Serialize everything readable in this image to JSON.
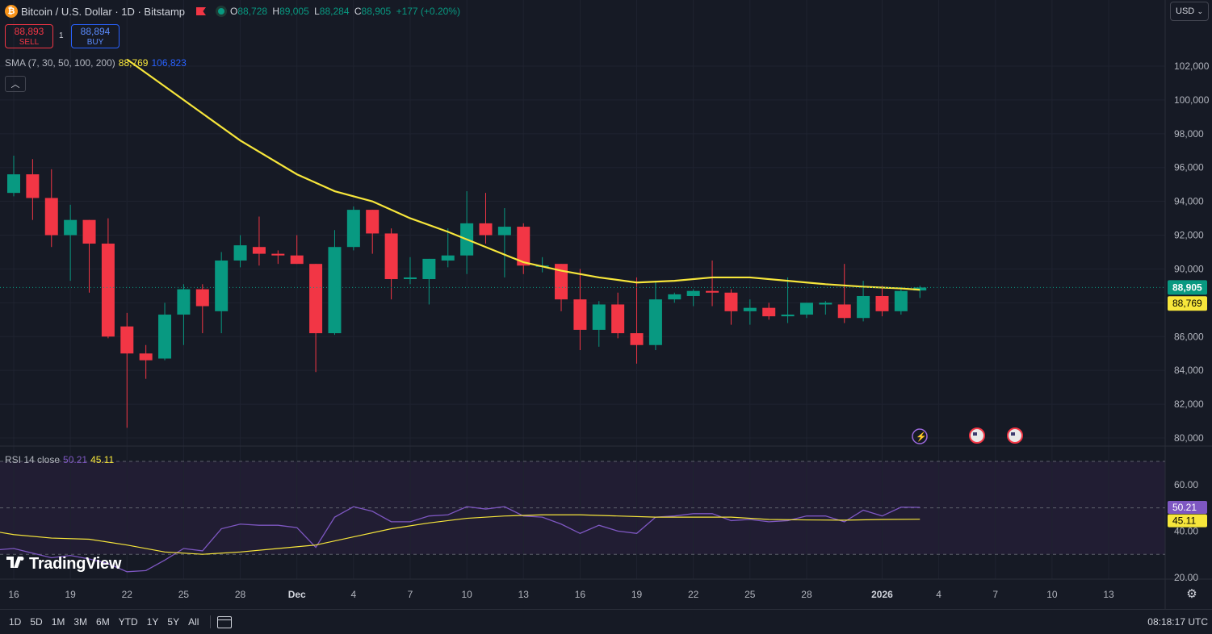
{
  "header": {
    "symbol_title": "Bitcoin / U.S. Dollar · 1D · Bitstamp",
    "ohlc": [
      {
        "k": "O",
        "v": "88,728"
      },
      {
        "k": "H",
        "v": "89,005"
      },
      {
        "k": "L",
        "v": "88,284"
      },
      {
        "k": "C",
        "v": "88,905"
      }
    ],
    "change": "+177 (+0.20%)"
  },
  "trade": {
    "sell_price": "88,893",
    "sell_label": "SELL",
    "spread": "1",
    "buy_price": "88,894",
    "buy_label": "BUY"
  },
  "sma_legend": {
    "label": "SMA (7, 30, 50, 100, 200)",
    "value1": "88,769",
    "value2": "106,823"
  },
  "rsi_legend": {
    "label": "RSI 14 close",
    "value1": "50.21",
    "value2": "45.11"
  },
  "currency": "USD",
  "logo_text": "TradingView",
  "bottom_bar": {
    "ranges": [
      "1D",
      "5D",
      "1M",
      "3M",
      "6M",
      "YTD",
      "1Y",
      "5Y",
      "All"
    ],
    "time": "08:18:17 UTC"
  },
  "colors": {
    "up": "#089981",
    "down": "#f23645",
    "sma": "#f7e63b",
    "rsi": "#7e57c2",
    "rsi_ma": "#f7e63b",
    "background": "#161a25"
  },
  "icons": [
    "bitcoin-icon",
    "flag-icon",
    "market-status-icon",
    "collapse-icon",
    "calendar-icon",
    "gear-icon",
    "tradingview-logo-icon",
    "event-lightning-icon",
    "us-flag-icon"
  ],
  "chart_data": [
    {
      "type": "candlestick",
      "title": "Bitcoin / U.S. Dollar · 1D · Bitstamp",
      "y_ticks": [
        80000,
        82000,
        84000,
        86000,
        88000,
        90000,
        92000,
        94000,
        96000,
        98000,
        100000,
        102000
      ],
      "y_tick_labels": [
        "80,000",
        "82,000",
        "84,000",
        "86,000",
        "88,000",
        "90,000",
        "92,000",
        "94,000",
        "96,000",
        "98,000",
        "100,000",
        "102,000"
      ],
      "x_ticks": [
        "16",
        "19",
        "22",
        "25",
        "28",
        "Dec",
        "4",
        "7",
        "10",
        "13",
        "16",
        "19",
        "22",
        "25",
        "28",
        "2026",
        "4",
        "7",
        "10",
        "13"
      ],
      "x_tick_index": [
        0,
        3,
        6,
        9,
        12,
        15,
        18,
        21,
        24,
        27,
        30,
        33,
        36,
        39,
        42,
        46,
        49,
        52,
        55,
        58
      ],
      "candles": [
        {
          "o": 94500,
          "h": 96700,
          "l": 94300,
          "c": 95600
        },
        {
          "o": 95600,
          "h": 96500,
          "l": 92900,
          "c": 94200
        },
        {
          "o": 94200,
          "h": 95900,
          "l": 91300,
          "c": 92000
        },
        {
          "o": 92000,
          "h": 93800,
          "l": 89300,
          "c": 92900
        },
        {
          "o": 92900,
          "h": 92900,
          "l": 88600,
          "c": 91500
        },
        {
          "o": 91500,
          "h": 93000,
          "l": 85900,
          "c": 86000
        },
        {
          "o": 86600,
          "h": 87400,
          "l": 80600,
          "c": 85000
        },
        {
          "o": 85000,
          "h": 85500,
          "l": 83500,
          "c": 84600
        },
        {
          "o": 84700,
          "h": 88000,
          "l": 84600,
          "c": 87300
        },
        {
          "o": 87300,
          "h": 89100,
          "l": 85500,
          "c": 88800
        },
        {
          "o": 88800,
          "h": 89100,
          "l": 86200,
          "c": 87800
        },
        {
          "o": 87500,
          "h": 91000,
          "l": 86200,
          "c": 90500
        },
        {
          "o": 90500,
          "h": 92000,
          "l": 90100,
          "c": 91400
        },
        {
          "o": 91300,
          "h": 93100,
          "l": 90200,
          "c": 90900
        },
        {
          "o": 90900,
          "h": 91100,
          "l": 90300,
          "c": 90800
        },
        {
          "o": 90800,
          "h": 92000,
          "l": 90300,
          "c": 90300
        },
        {
          "o": 90300,
          "h": 90300,
          "l": 83900,
          "c": 86200
        },
        {
          "o": 86200,
          "h": 92300,
          "l": 86100,
          "c": 91300
        },
        {
          "o": 91300,
          "h": 93700,
          "l": 91100,
          "c": 93500
        },
        {
          "o": 93500,
          "h": 93500,
          "l": 90900,
          "c": 92100
        },
        {
          "o": 92100,
          "h": 92400,
          "l": 88200,
          "c": 89400
        },
        {
          "o": 89400,
          "h": 90700,
          "l": 89100,
          "c": 89500
        },
        {
          "o": 89400,
          "h": 90600,
          "l": 87900,
          "c": 90600
        },
        {
          "o": 90500,
          "h": 92400,
          "l": 90100,
          "c": 90800
        },
        {
          "o": 90800,
          "h": 94600,
          "l": 89700,
          "c": 92700
        },
        {
          "o": 92700,
          "h": 94500,
          "l": 91500,
          "c": 92000
        },
        {
          "o": 92000,
          "h": 93600,
          "l": 89500,
          "c": 92500
        },
        {
          "o": 92500,
          "h": 92700,
          "l": 89700,
          "c": 90200
        },
        {
          "o": 90200,
          "h": 90700,
          "l": 89800,
          "c": 90200
        },
        {
          "o": 90300,
          "h": 90300,
          "l": 87500,
          "c": 88200
        },
        {
          "o": 88200,
          "h": 90000,
          "l": 85200,
          "c": 86400
        },
        {
          "o": 86400,
          "h": 88100,
          "l": 85400,
          "c": 87900
        },
        {
          "o": 87900,
          "h": 88600,
          "l": 85900,
          "c": 86200
        },
        {
          "o": 86200,
          "h": 89500,
          "l": 84400,
          "c": 85500
        },
        {
          "o": 85500,
          "h": 89300,
          "l": 85200,
          "c": 88200
        },
        {
          "o": 88200,
          "h": 88600,
          "l": 88000,
          "c": 88500
        },
        {
          "o": 88400,
          "h": 88800,
          "l": 87800,
          "c": 88700
        },
        {
          "o": 88700,
          "h": 90500,
          "l": 87800,
          "c": 88600
        },
        {
          "o": 88600,
          "h": 88800,
          "l": 86700,
          "c": 87500
        },
        {
          "o": 87500,
          "h": 88200,
          "l": 86700,
          "c": 87700
        },
        {
          "o": 87700,
          "h": 88000,
          "l": 87000,
          "c": 87200
        },
        {
          "o": 87200,
          "h": 89500,
          "l": 86800,
          "c": 87300
        },
        {
          "o": 87300,
          "h": 88000,
          "l": 87100,
          "c": 88000
        },
        {
          "o": 87900,
          "h": 88100,
          "l": 87300,
          "c": 88000
        },
        {
          "o": 87900,
          "h": 90300,
          "l": 86800,
          "c": 87100
        },
        {
          "o": 87100,
          "h": 89300,
          "l": 86900,
          "c": 88400
        },
        {
          "o": 88400,
          "h": 89000,
          "l": 87200,
          "c": 87500
        },
        {
          "o": 87500,
          "h": 88900,
          "l": 87300,
          "c": 88700
        },
        {
          "o": 88728,
          "h": 89005,
          "l": 88284,
          "c": 88905
        }
      ],
      "sma_line": [
        {
          "i": 6,
          "v": 102400
        },
        {
          "i": 9,
          "v": 100000
        },
        {
          "i": 12,
          "v": 97600
        },
        {
          "i": 15,
          "v": 95600
        },
        {
          "i": 17,
          "v": 94600
        },
        {
          "i": 19,
          "v": 94000
        },
        {
          "i": 21,
          "v": 93000
        },
        {
          "i": 23,
          "v": 92200
        },
        {
          "i": 25,
          "v": 91300
        },
        {
          "i": 27,
          "v": 90400
        },
        {
          "i": 29,
          "v": 89900
        },
        {
          "i": 31,
          "v": 89500
        },
        {
          "i": 33,
          "v": 89200
        },
        {
          "i": 35,
          "v": 89300
        },
        {
          "i": 37,
          "v": 89500
        },
        {
          "i": 39,
          "v": 89500
        },
        {
          "i": 41,
          "v": 89300
        },
        {
          "i": 43,
          "v": 89100
        },
        {
          "i": 45,
          "v": 88950
        },
        {
          "i": 47,
          "v": 88850
        },
        {
          "i": 48,
          "v": 88769
        }
      ],
      "last_price": "88,905",
      "sma_value": "88,769"
    },
    {
      "type": "line",
      "title": "RSI 14 close",
      "y_ticks": [
        20,
        40,
        60
      ],
      "y_tick_labels": [
        "20.00",
        "40.00",
        "60.00"
      ],
      "bands": [
        70,
        50,
        30
      ],
      "rsi": [
        {
          "i": -1.5,
          "v": 31.5
        },
        {
          "i": 0,
          "v": 32.5
        },
        {
          "i": 1,
          "v": 30.5
        },
        {
          "i": 2,
          "v": 28.5
        },
        {
          "i": 3,
          "v": 29.5
        },
        {
          "i": 4,
          "v": 28
        },
        {
          "i": 5,
          "v": 26
        },
        {
          "i": 6,
          "v": 22.5
        },
        {
          "i": 7,
          "v": 23
        },
        {
          "i": 8,
          "v": 27.5
        },
        {
          "i": 9,
          "v": 32.5
        },
        {
          "i": 10,
          "v": 31.5
        },
        {
          "i": 11,
          "v": 41
        },
        {
          "i": 12,
          "v": 43
        },
        {
          "i": 13,
          "v": 42.5
        },
        {
          "i": 14,
          "v": 42.5
        },
        {
          "i": 15,
          "v": 41.5
        },
        {
          "i": 16,
          "v": 33
        },
        {
          "i": 17,
          "v": 46
        },
        {
          "i": 18,
          "v": 50.5
        },
        {
          "i": 19,
          "v": 48.5
        },
        {
          "i": 20,
          "v": 44
        },
        {
          "i": 21,
          "v": 44
        },
        {
          "i": 22,
          "v": 46.5
        },
        {
          "i": 23,
          "v": 47
        },
        {
          "i": 24,
          "v": 50.5
        },
        {
          "i": 25,
          "v": 49.5
        },
        {
          "i": 26,
          "v": 50.5
        },
        {
          "i": 27,
          "v": 46.5
        },
        {
          "i": 28,
          "v": 46
        },
        {
          "i": 29,
          "v": 43
        },
        {
          "i": 30,
          "v": 39
        },
        {
          "i": 31,
          "v": 42.5
        },
        {
          "i": 32,
          "v": 40
        },
        {
          "i": 33,
          "v": 39
        },
        {
          "i": 34,
          "v": 46
        },
        {
          "i": 35,
          "v": 46.5
        },
        {
          "i": 36,
          "v": 47.5
        },
        {
          "i": 37,
          "v": 47.5
        },
        {
          "i": 38,
          "v": 44.5
        },
        {
          "i": 39,
          "v": 45
        },
        {
          "i": 40,
          "v": 44
        },
        {
          "i": 41,
          "v": 44.5
        },
        {
          "i": 42,
          "v": 46.5
        },
        {
          "i": 43,
          "v": 46.5
        },
        {
          "i": 44,
          "v": 44
        },
        {
          "i": 45,
          "v": 49
        },
        {
          "i": 46,
          "v": 46.5
        },
        {
          "i": 47,
          "v": 50.3
        },
        {
          "i": 48,
          "v": 50.21
        }
      ],
      "rsi_ma": [
        {
          "i": -1.5,
          "v": 40.5
        },
        {
          "i": 0,
          "v": 38.5
        },
        {
          "i": 2,
          "v": 37
        },
        {
          "i": 4,
          "v": 36.5
        },
        {
          "i": 6,
          "v": 34
        },
        {
          "i": 8,
          "v": 31
        },
        {
          "i": 10,
          "v": 30
        },
        {
          "i": 12,
          "v": 31
        },
        {
          "i": 14,
          "v": 32.5
        },
        {
          "i": 16,
          "v": 34
        },
        {
          "i": 18,
          "v": 37.5
        },
        {
          "i": 20,
          "v": 41
        },
        {
          "i": 22,
          "v": 43.5
        },
        {
          "i": 24,
          "v": 45.5
        },
        {
          "i": 26,
          "v": 46.5
        },
        {
          "i": 28,
          "v": 47
        },
        {
          "i": 30,
          "v": 47
        },
        {
          "i": 32,
          "v": 46.5
        },
        {
          "i": 34,
          "v": 46
        },
        {
          "i": 36,
          "v": 46
        },
        {
          "i": 38,
          "v": 46
        },
        {
          "i": 40,
          "v": 45
        },
        {
          "i": 42,
          "v": 44.8
        },
        {
          "i": 44,
          "v": 44.7
        },
        {
          "i": 46,
          "v": 45
        },
        {
          "i": 48,
          "v": 45.11
        }
      ],
      "rsi_value": "50.21",
      "rsi_ma_value": "45.11"
    }
  ]
}
